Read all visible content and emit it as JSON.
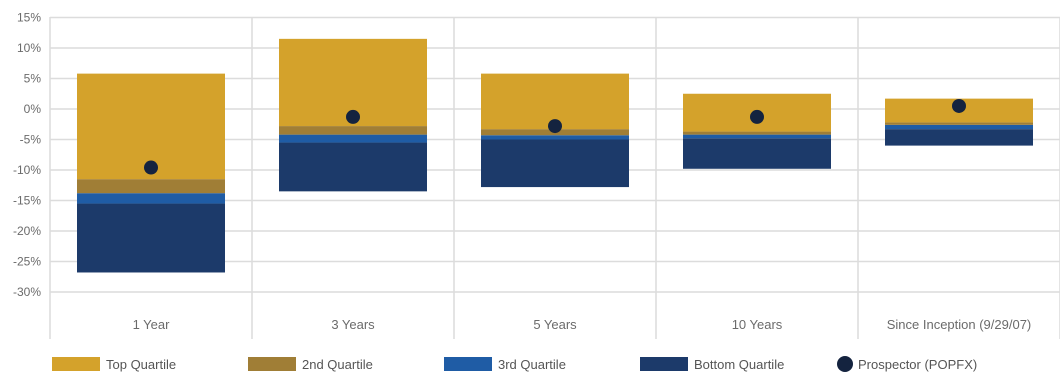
{
  "chart_data": {
    "type": "bar",
    "title": "",
    "xlabel": "",
    "ylabel": "",
    "y_tick_labels": [
      "15%",
      "10%",
      "5%",
      "0%",
      "-5%",
      "-10%",
      "-15%",
      "-20%",
      "-25%",
      "-30%"
    ],
    "y_ticks": [
      15,
      10,
      5,
      0,
      -5,
      -10,
      -15,
      -20,
      -25,
      -30
    ],
    "ylim": [
      -40,
      16
    ],
    "grid": true,
    "legend_position": "bottom",
    "categories": [
      "1 Year",
      "3 Years",
      "5 Years",
      "10 Years",
      "Since Inception (9/29/07)"
    ],
    "quartile_bands": [
      {
        "bottom_low": -26.8,
        "bottom_high": -15.5,
        "third_high": -13.8,
        "second_high": -11.5,
        "top_high": 5.8
      },
      {
        "bottom_low": -13.5,
        "bottom_high": -5.5,
        "third_high": -4.2,
        "second_high": -2.8,
        "top_high": 11.5
      },
      {
        "bottom_low": -12.8,
        "bottom_high": -5.0,
        "third_high": -4.3,
        "second_high": -3.3,
        "top_high": 5.8
      },
      {
        "bottom_low": -9.8,
        "bottom_high": -4.8,
        "third_high": -4.2,
        "second_high": -3.7,
        "top_high": 2.5
      },
      {
        "bottom_low": -6.0,
        "bottom_high": -3.3,
        "third_high": -2.6,
        "second_high": -2.2,
        "top_high": 1.7
      }
    ],
    "series": [
      {
        "name": "Top Quartile",
        "color": "#D4A22B"
      },
      {
        "name": "2nd Quartile",
        "color": "#A07E36"
      },
      {
        "name": "3rd Quartile",
        "color": "#1F5CA5"
      },
      {
        "name": "Bottom Quartile",
        "color": "#1C3A6A"
      },
      {
        "name": "Prospector (POPFX)",
        "color": "#14233F",
        "values": [
          -9.6,
          -1.3,
          -2.8,
          -1.3,
          0.5
        ]
      }
    ]
  },
  "legend": [
    {
      "label": "Top Quartile",
      "marker": "rect",
      "color": "#D4A22B"
    },
    {
      "label": "2nd Quartile",
      "marker": "rect",
      "color": "#A07E36"
    },
    {
      "label": "3rd Quartile",
      "marker": "rect",
      "color": "#1F5CA5"
    },
    {
      "label": "Bottom Quartile",
      "marker": "rect",
      "color": "#1C3A6A"
    },
    {
      "label": "Prospector (POPFX)",
      "marker": "circle",
      "color": "#14233F"
    }
  ]
}
